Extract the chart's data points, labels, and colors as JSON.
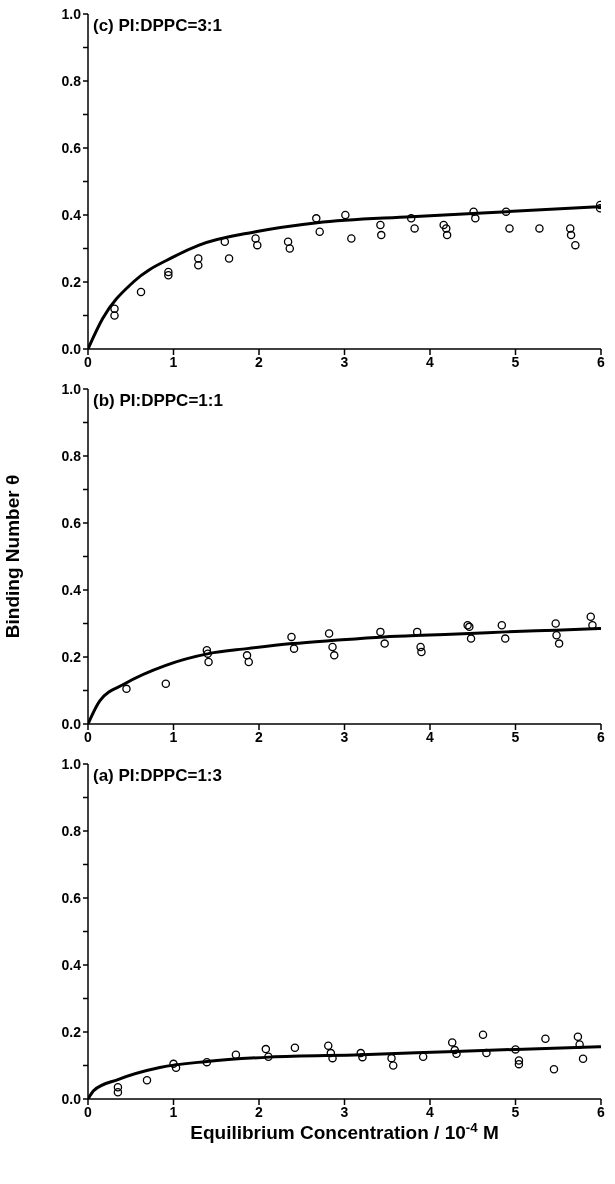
{
  "chart_data": [
    {
      "type": "scatter",
      "title": "(c) PI:DPPC=3:1",
      "xlim": [
        0,
        6
      ],
      "xticks": [
        0,
        1,
        2,
        3,
        4,
        5,
        6
      ],
      "ylim": [
        0,
        1
      ],
      "yticks": [
        {
          "value": 0,
          "label": "0.0"
        },
        {
          "value": 0.1,
          "label": null
        },
        {
          "value": 0.2,
          "label": "0.2"
        },
        {
          "value": 0.3,
          "label": null
        },
        {
          "value": 0.4,
          "label": "0.4"
        },
        {
          "value": 0.5,
          "label": null
        },
        {
          "value": 0.6,
          "label": "0.6"
        },
        {
          "value": 0.7,
          "label": null
        },
        {
          "value": 0.8,
          "label": "0.8"
        },
        {
          "value": 0.9,
          "label": null
        },
        {
          "value": 1,
          "label": "1.0"
        }
      ],
      "grid": false,
      "series": [
        {
          "color": "#000000",
          "marker": "circle",
          "x": [
            0.31,
            0.31,
            0.62,
            0.94,
            0.94,
            1.29,
            1.29,
            1.6,
            1.65,
            1.96,
            1.98,
            2.34,
            2.36,
            2.67,
            2.71,
            3.01,
            3.08,
            3.42,
            3.43,
            3.78,
            3.82,
            4.16,
            4.19,
            4.2,
            4.51,
            4.53,
            4.89,
            4.93,
            5.28,
            5.64,
            5.65,
            5.7,
            5.99,
            5.99
          ],
          "values": [
            0.12,
            0.1,
            0.17,
            0.23,
            0.22,
            0.27,
            0.25,
            0.32,
            0.27,
            0.33,
            0.31,
            0.32,
            0.3,
            0.39,
            0.35,
            0.4,
            0.33,
            0.37,
            0.34,
            0.39,
            0.36,
            0.37,
            0.36,
            0.34,
            0.41,
            0.39,
            0.41,
            0.36,
            0.36,
            0.36,
            0.34,
            0.31,
            0.43,
            0.42
          ]
        },
        {
          "type": "line",
          "color": "#000000",
          "marker": "none",
          "line_style": "solid",
          "x": [
            0,
            0.17,
            0.53,
            1.0,
            1.3,
            1.96,
            2.68,
            3.78,
            4.9,
            6.0
          ],
          "values": [
            0,
            0.09,
            0.2,
            0.275,
            0.31,
            0.35,
            0.377,
            0.395,
            0.41,
            0.425
          ]
        }
      ]
    },
    {
      "type": "scatter",
      "title": "(b) PI:DPPC=1:1",
      "ylabel": "Binding Number θ",
      "xlim": [
        0,
        6
      ],
      "xticks": [
        0,
        1,
        2,
        3,
        4,
        5,
        6
      ],
      "ylim": [
        0,
        1
      ],
      "yticks": [
        {
          "value": 0,
          "label": "0.0"
        },
        {
          "value": 0.1,
          "label": null
        },
        {
          "value": 0.2,
          "label": "0.2"
        },
        {
          "value": 0.3,
          "label": null
        },
        {
          "value": 0.4,
          "label": "0.4"
        },
        {
          "value": 0.5,
          "label": null
        },
        {
          "value": 0.6,
          "label": "0.6"
        },
        {
          "value": 0.7,
          "label": null
        },
        {
          "value": 0.8,
          "label": "0.8"
        },
        {
          "value": 0.9,
          "label": null
        },
        {
          "value": 1,
          "label": "1.0"
        }
      ],
      "grid": false,
      "series": [
        {
          "color": "#000000",
          "marker": "circle",
          "x": [
            0.45,
            0.91,
            1.39,
            1.4,
            1.41,
            1.86,
            1.88,
            2.38,
            2.41,
            2.82,
            2.86,
            2.88,
            3.42,
            3.47,
            3.85,
            3.89,
            3.9,
            4.44,
            4.46,
            4.48,
            4.84,
            4.88,
            5.47,
            5.48,
            5.51,
            5.88,
            5.9
          ],
          "values": [
            0.105,
            0.12,
            0.22,
            0.21,
            0.185,
            0.205,
            0.185,
            0.26,
            0.225,
            0.27,
            0.23,
            0.205,
            0.275,
            0.24,
            0.275,
            0.23,
            0.215,
            0.295,
            0.29,
            0.255,
            0.295,
            0.255,
            0.3,
            0.265,
            0.24,
            0.32,
            0.295
          ]
        },
        {
          "type": "line",
          "color": "#000000",
          "marker": "none",
          "line_style": "solid",
          "x": [
            0,
            0.14,
            0.43,
            0.91,
            1.41,
            1.86,
            2.39,
            2.89,
            3.46,
            3.91,
            4.46,
            4.89,
            5.47,
            6.0
          ],
          "values": [
            0,
            0.07,
            0.12,
            0.175,
            0.21,
            0.225,
            0.24,
            0.25,
            0.26,
            0.265,
            0.27,
            0.275,
            0.28,
            0.285
          ]
        }
      ]
    },
    {
      "type": "scatter",
      "title": "(a) PI:DPPC=1:3",
      "xlabel": "Equilibrium Concentration / 10$^{-4}$ M",
      "xlim": [
        0,
        6
      ],
      "xticks": [
        0,
        1,
        2,
        3,
        4,
        5,
        6
      ],
      "ylim": [
        0,
        1
      ],
      "yticks": [
        {
          "value": 0,
          "label": "0.0"
        },
        {
          "value": 0.1,
          "label": null
        },
        {
          "value": 0.2,
          "label": "0.2"
        },
        {
          "value": 0.3,
          "label": null
        },
        {
          "value": 0.4,
          "label": "0.4"
        },
        {
          "value": 0.5,
          "label": null
        },
        {
          "value": 0.6,
          "label": "0.6"
        },
        {
          "value": 0.7,
          "label": null
        },
        {
          "value": 0.8,
          "label": "0.8"
        },
        {
          "value": 0.9,
          "label": null
        },
        {
          "value": 1,
          "label": "1.0"
        }
      ],
      "grid": false,
      "series": [
        {
          "color": "#000000",
          "marker": "circle",
          "x": [
            0.35,
            0.35,
            0.69,
            1.0,
            1.03,
            1.39,
            1.73,
            2.08,
            2.11,
            2.42,
            2.81,
            2.84,
            2.86,
            3.19,
            3.21,
            3.55,
            3.57,
            3.92,
            4.26,
            4.29,
            4.31,
            4.62,
            4.66,
            5.0,
            5.04,
            5.04,
            5.35,
            5.45,
            5.73,
            5.75,
            5.79
          ],
          "values": [
            0.035,
            0.02,
            0.056,
            0.105,
            0.093,
            0.11,
            0.132,
            0.149,
            0.126,
            0.153,
            0.159,
            0.137,
            0.122,
            0.137,
            0.125,
            0.122,
            0.1,
            0.126,
            0.169,
            0.146,
            0.135,
            0.192,
            0.137,
            0.148,
            0.115,
            0.104,
            0.18,
            0.089,
            0.186,
            0.163,
            0.12
          ]
        },
        {
          "type": "line",
          "color": "#000000",
          "marker": "none",
          "line_style": "solid",
          "x": [
            0,
            0.07,
            0.35,
            0.84,
            1.39,
            2.12,
            3.2,
            4.29,
            5.0,
            6.0
          ],
          "values": [
            0,
            0.026,
            0.058,
            0.094,
            0.112,
            0.125,
            0.132,
            0.142,
            0.148,
            0.156
          ]
        }
      ]
    }
  ]
}
